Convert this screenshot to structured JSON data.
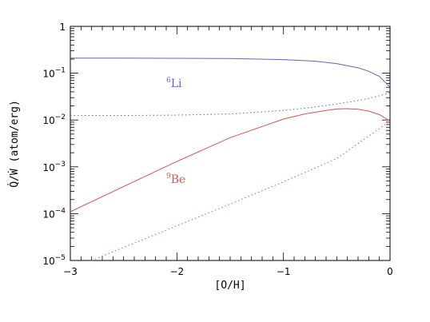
{
  "chart_data": {
    "type": "line",
    "title": "",
    "xlabel": "[O/H]",
    "ylabel": "Q̇/Ẇ (atom/erg)",
    "xlim": [
      -3,
      0
    ],
    "ylim": [
      1e-05,
      1
    ],
    "y_scale": "log",
    "grid": false,
    "x_ticks": [
      -3,
      -2,
      -1,
      0
    ],
    "x_tick_labels": [
      "−3",
      "−2",
      "−1",
      "0"
    ],
    "y_ticks": [
      1e-05,
      0.0001,
      0.001,
      0.01,
      0.1,
      1
    ],
    "y_tick_labels": [
      {
        "base": "10",
        "exp": "−5"
      },
      {
        "base": "10",
        "exp": "−4"
      },
      {
        "base": "10",
        "exp": "−3"
      },
      {
        "base": "10",
        "exp": "−2"
      },
      {
        "base": "10",
        "exp": "−1"
      },
      {
        "base": "1",
        "exp": ""
      }
    ],
    "series": [
      {
        "color": "#6060d0",
        "dash": "solid",
        "x": [
          -3.0,
          -2.5,
          -2.0,
          -1.5,
          -1.0,
          -0.7,
          -0.5,
          -0.3,
          -0.2,
          -0.1,
          0.0
        ],
        "y": [
          0.21,
          0.21,
          0.208,
          0.205,
          0.195,
          0.18,
          0.16,
          0.13,
          0.11,
          0.085,
          0.05
        ]
      },
      {
        "color": "#6060d0",
        "dash": "dotted",
        "x": [
          -3.0,
          -2.5,
          -2.0,
          -1.5,
          -1.0,
          -0.7,
          -0.5,
          -0.3,
          -0.2,
          -0.1,
          0.0
        ],
        "y": [
          0.0125,
          0.0125,
          0.0127,
          0.0135,
          0.016,
          0.019,
          0.022,
          0.026,
          0.029,
          0.033,
          0.038
        ]
      },
      {
        "color": "#e05050",
        "dash": "solid",
        "x": [
          -3.0,
          -2.5,
          -2.0,
          -1.5,
          -1.0,
          -0.8,
          -0.6,
          -0.5,
          -0.4,
          -0.3,
          -0.2,
          -0.1,
          0.0
        ],
        "y": [
          0.00011,
          0.00038,
          0.0013,
          0.0042,
          0.0105,
          0.0135,
          0.016,
          0.0172,
          0.0175,
          0.017,
          0.0155,
          0.013,
          0.0095
        ]
      },
      {
        "color": "#e05050",
        "dash": "dotted",
        "x": [
          -2.8,
          -2.5,
          -2.0,
          -1.5,
          -1.0,
          -0.5,
          0.0
        ],
        "y": [
          1e-05,
          1.9e-05,
          5.5e-05,
          0.00016,
          0.00048,
          0.0015,
          0.0095
        ]
      }
    ],
    "annotations": [
      {
        "sup": "6",
        "text": "Li",
        "color": "#6060d0",
        "x": -2.1,
        "y": 0.05
      },
      {
        "sup": "9",
        "text": "Be",
        "color": "#e05050",
        "x": -2.1,
        "y": 0.00045
      }
    ]
  }
}
